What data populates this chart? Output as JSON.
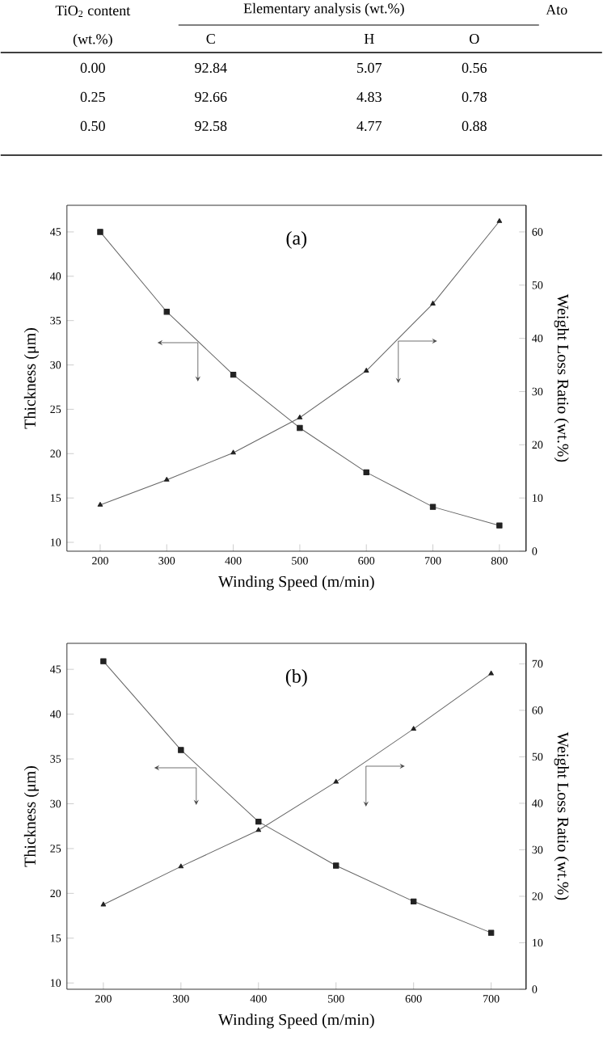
{
  "chart_data": [
    {
      "type": "other",
      "annotations": [
        "TiO$_{2}$ content",
        "Elementary analysis (wt.%)",
        "Ato",
        "(wt.%)",
        "C",
        "H",
        "O",
        "0.00",
        "92.84",
        "5.07",
        "0.56",
        "0.25",
        "92.66",
        "4.83",
        "0.78",
        "0.50",
        "92.58",
        "4.77",
        "0.88"
      ]
    },
    {
      "type": "line",
      "title": "(a)",
      "xlabel": "Winding Speed (m/min)",
      "ylabel": "Thickness (μm)",
      "y2label": "Weight Loss Ratio (wt.%)",
      "x": [
        200,
        300,
        400,
        500,
        600,
        700,
        800
      ],
      "xlim": [
        150,
        840
      ],
      "xticks": [
        200,
        300,
        400,
        500,
        600,
        700,
        800
      ],
      "ylim": [
        9,
        48
      ],
      "yticks": [
        10,
        15,
        20,
        25,
        30,
        35,
        40,
        45
      ],
      "y2lim": [
        0,
        65
      ],
      "y2ticks": [
        0,
        10,
        20,
        30,
        40,
        50,
        60
      ],
      "line_style": "solid",
      "series": [
        {
          "color": "#222222",
          "marker": "square",
          "axis": "y",
          "values": [
            45.0,
            36.0,
            28.9,
            22.9,
            17.9,
            14.0,
            11.9
          ]
        },
        {
          "color": "#222222",
          "marker": "triangle",
          "axis": "y2",
          "values": [
            8.7,
            13.4,
            18.5,
            25.1,
            33.9,
            46.5,
            62.0
          ]
        }
      ]
    },
    {
      "type": "line",
      "title": "(b)",
      "xlabel": "Winding Speed (m/min)",
      "ylabel": "Thickness (μm)",
      "y2label": "Weight Loss Ratio (wt.%)",
      "x": [
        200,
        300,
        400,
        500,
        600,
        700
      ],
      "xlim": [
        153,
        745
      ],
      "xticks": [
        200,
        300,
        400,
        500,
        600,
        700
      ],
      "ylim": [
        9.3,
        47.9
      ],
      "yticks": [
        10,
        15,
        20,
        25,
        30,
        35,
        40,
        45
      ],
      "y2lim": [
        0,
        74.4
      ],
      "y2ticks": [
        0,
        10,
        20,
        30,
        40,
        50,
        60,
        70
      ],
      "line_style": "solid",
      "series": [
        {
          "color": "#222222",
          "marker": "square",
          "axis": "y",
          "values": [
            45.9,
            36.0,
            28.0,
            23.1,
            19.1,
            15.6
          ]
        },
        {
          "color": "#222222",
          "marker": "triangle",
          "axis": "y2",
          "values": [
            18.2,
            26.4,
            34.2,
            44.6,
            56.0,
            67.9
          ]
        }
      ]
    }
  ]
}
